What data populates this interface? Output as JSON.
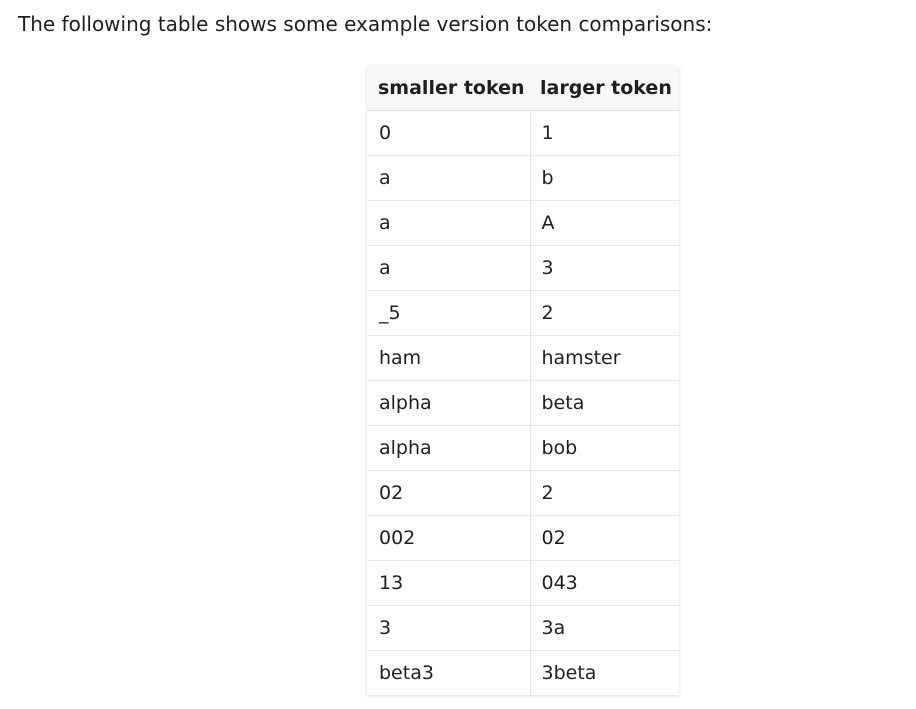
{
  "intro_text": "The following table shows some example version token comparisons:",
  "table": {
    "headers": [
      "smaller token",
      "larger token"
    ],
    "rows": [
      [
        "0",
        "1"
      ],
      [
        "a",
        "b"
      ],
      [
        "a",
        "A"
      ],
      [
        "a",
        "3"
      ],
      [
        "_5",
        "2"
      ],
      [
        "ham",
        "hamster"
      ],
      [
        "alpha",
        "beta"
      ],
      [
        "alpha",
        "bob"
      ],
      [
        "02",
        "2"
      ],
      [
        "002",
        "02"
      ],
      [
        "13",
        "043"
      ],
      [
        "3",
        "3a"
      ],
      [
        "beta3",
        "3beta"
      ]
    ]
  }
}
